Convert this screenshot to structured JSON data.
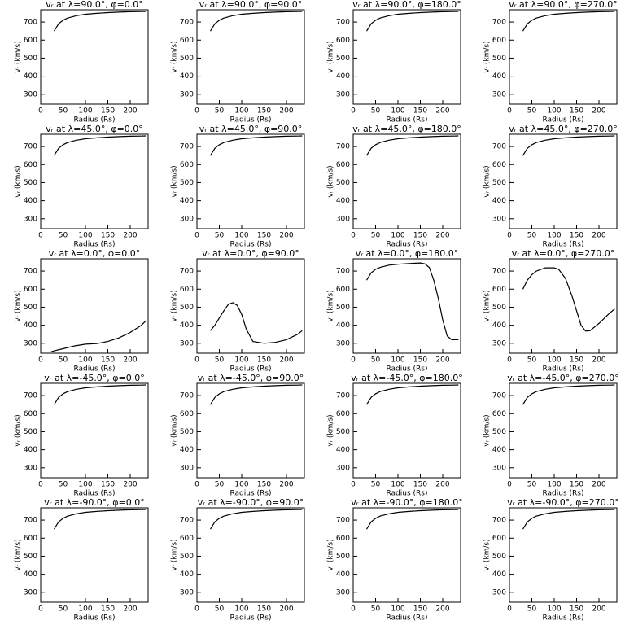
{
  "chart_data": [
    {
      "type": "line",
      "title": "vᵣ at λ=90.0°, φ=0.0°",
      "xlabel": "Radius (Rs)",
      "ylabel": "vᵣ (km/s)",
      "x": [
        30,
        40,
        50,
        60,
        80,
        100,
        125,
        150,
        175,
        200,
        225,
        235
      ],
      "values": [
        650,
        690,
        710,
        722,
        735,
        743,
        748,
        752,
        755,
        757,
        758,
        759
      ],
      "color": "#000000",
      "xlim": [
        0,
        240
      ],
      "xticks": [
        0,
        50,
        100,
        150,
        200
      ],
      "ylim": [
        245,
        768
      ],
      "yticks": [
        300,
        400,
        500,
        600,
        700
      ]
    },
    {
      "type": "line",
      "title": "vᵣ at λ=90.0°, φ=90.0°",
      "xlabel": "Radius (Rs)",
      "ylabel": "vᵣ (km/s)",
      "x": [
        30,
        40,
        50,
        60,
        80,
        100,
        125,
        150,
        175,
        200,
        225,
        235
      ],
      "values": [
        650,
        690,
        710,
        722,
        735,
        743,
        748,
        752,
        755,
        757,
        758,
        759
      ],
      "color": "#000000",
      "xlim": [
        0,
        240
      ],
      "xticks": [
        0,
        50,
        100,
        150,
        200
      ],
      "ylim": [
        245,
        768
      ],
      "yticks": [
        300,
        400,
        500,
        600,
        700
      ]
    },
    {
      "type": "line",
      "title": "vᵣ at λ=90.0°, φ=180.0°",
      "xlabel": "Radius (Rs)",
      "ylabel": "vᵣ (km/s)",
      "x": [
        30,
        40,
        50,
        60,
        80,
        100,
        125,
        150,
        175,
        200,
        225,
        235
      ],
      "values": [
        650,
        690,
        710,
        722,
        735,
        743,
        748,
        752,
        755,
        757,
        758,
        759
      ],
      "color": "#000000",
      "xlim": [
        0,
        240
      ],
      "xticks": [
        0,
        50,
        100,
        150,
        200
      ],
      "ylim": [
        245,
        768
      ],
      "yticks": [
        300,
        400,
        500,
        600,
        700
      ]
    },
    {
      "type": "line",
      "title": "vᵣ at λ=90.0°, φ=270.0°",
      "xlabel": "Radius (Rs)",
      "ylabel": "vᵣ (km/s)",
      "x": [
        30,
        40,
        50,
        60,
        80,
        100,
        125,
        150,
        175,
        200,
        225,
        235
      ],
      "values": [
        650,
        690,
        710,
        722,
        735,
        743,
        748,
        752,
        755,
        757,
        758,
        759
      ],
      "color": "#000000",
      "xlim": [
        0,
        240
      ],
      "xticks": [
        0,
        50,
        100,
        150,
        200
      ],
      "ylim": [
        245,
        768
      ],
      "yticks": [
        300,
        400,
        500,
        600,
        700
      ]
    },
    {
      "type": "line",
      "title": "vᵣ at λ=45.0°, φ=0.0°",
      "xlabel": "Radius (Rs)",
      "ylabel": "vᵣ (km/s)",
      "x": [
        30,
        40,
        50,
        60,
        80,
        100,
        125,
        150,
        175,
        200,
        225,
        235
      ],
      "values": [
        650,
        690,
        710,
        722,
        735,
        743,
        748,
        752,
        755,
        757,
        758,
        759
      ],
      "color": "#000000",
      "xlim": [
        0,
        240
      ],
      "xticks": [
        0,
        50,
        100,
        150,
        200
      ],
      "ylim": [
        245,
        768
      ],
      "yticks": [
        300,
        400,
        500,
        600,
        700
      ]
    },
    {
      "type": "line",
      "title": "vᵣ at λ=45.0°, φ=90.0°",
      "xlabel": "Radius (Rs)",
      "ylabel": "vᵣ (km/s)",
      "x": [
        30,
        40,
        50,
        60,
        80,
        100,
        125,
        150,
        175,
        200,
        225,
        235
      ],
      "values": [
        650,
        690,
        710,
        722,
        735,
        743,
        748,
        752,
        755,
        757,
        758,
        759
      ],
      "color": "#000000",
      "xlim": [
        0,
        240
      ],
      "xticks": [
        0,
        50,
        100,
        150,
        200
      ],
      "ylim": [
        245,
        768
      ],
      "yticks": [
        300,
        400,
        500,
        600,
        700
      ]
    },
    {
      "type": "line",
      "title": "vᵣ at λ=45.0°, φ=180.0°",
      "xlabel": "Radius (Rs)",
      "ylabel": "vᵣ (km/s)",
      "x": [
        30,
        40,
        50,
        60,
        80,
        100,
        125,
        150,
        175,
        200,
        225,
        235
      ],
      "values": [
        650,
        690,
        710,
        722,
        735,
        743,
        748,
        752,
        755,
        757,
        758,
        759
      ],
      "color": "#000000",
      "xlim": [
        0,
        240
      ],
      "xticks": [
        0,
        50,
        100,
        150,
        200
      ],
      "ylim": [
        245,
        768
      ],
      "yticks": [
        300,
        400,
        500,
        600,
        700
      ]
    },
    {
      "type": "line",
      "title": "vᵣ at λ=45.0°, φ=270.0°",
      "xlabel": "Radius (Rs)",
      "ylabel": "vᵣ (km/s)",
      "x": [
        30,
        40,
        50,
        60,
        80,
        100,
        125,
        150,
        175,
        200,
        225,
        235
      ],
      "values": [
        650,
        690,
        710,
        722,
        735,
        743,
        748,
        752,
        755,
        757,
        758,
        759
      ],
      "color": "#000000",
      "xlim": [
        0,
        240
      ],
      "xticks": [
        0,
        50,
        100,
        150,
        200
      ],
      "ylim": [
        245,
        768
      ],
      "yticks": [
        300,
        400,
        500,
        600,
        700
      ]
    },
    {
      "type": "line",
      "title": "vᵣ at λ=0.0°, φ=0.0°",
      "xlabel": "Radius (Rs)",
      "ylabel": "vᵣ (km/s)",
      "x": [
        20,
        30,
        50,
        75,
        100,
        125,
        150,
        175,
        200,
        225,
        235
      ],
      "values": [
        250,
        258,
        270,
        285,
        295,
        298,
        310,
        330,
        360,
        400,
        425
      ],
      "color": "#000000",
      "xlim": [
        0,
        240
      ],
      "xticks": [
        0,
        50,
        100,
        150,
        200
      ],
      "ylim": [
        245,
        768
      ],
      "yticks": [
        300,
        400,
        500,
        600,
        700
      ]
    },
    {
      "type": "line",
      "title": "vᵣ at λ=0.0°, φ=90.0°",
      "xlabel": "Radius (Rs)",
      "ylabel": "vᵣ (km/s)",
      "x": [
        30,
        40,
        50,
        60,
        70,
        80,
        90,
        100,
        110,
        125,
        150,
        175,
        200,
        225,
        235
      ],
      "values": [
        370,
        400,
        440,
        480,
        515,
        525,
        510,
        460,
        380,
        310,
        300,
        305,
        320,
        350,
        370
      ],
      "color": "#000000",
      "xlim": [
        0,
        240
      ],
      "xticks": [
        0,
        50,
        100,
        150,
        200
      ],
      "ylim": [
        245,
        768
      ],
      "yticks": [
        300,
        400,
        500,
        600,
        700
      ]
    },
    {
      "type": "line",
      "title": "vᵣ at λ=0.0°, φ=180.0°",
      "xlabel": "Radius (Rs)",
      "ylabel": "vᵣ (km/s)",
      "x": [
        30,
        40,
        50,
        60,
        80,
        100,
        125,
        150,
        160,
        170,
        180,
        190,
        200,
        210,
        220,
        235
      ],
      "values": [
        650,
        690,
        710,
        720,
        733,
        738,
        742,
        745,
        740,
        720,
        650,
        550,
        430,
        340,
        320,
        320
      ],
      "color": "#000000",
      "xlim": [
        0,
        240
      ],
      "xticks": [
        0,
        50,
        100,
        150,
        200
      ],
      "ylim": [
        245,
        768
      ],
      "yticks": [
        300,
        400,
        500,
        600,
        700
      ]
    },
    {
      "type": "line",
      "title": "vᵣ at λ=0.0°, φ=270.0°",
      "xlabel": "Radius (Rs)",
      "ylabel": "vᵣ (km/s)",
      "x": [
        30,
        40,
        50,
        60,
        80,
        100,
        110,
        125,
        140,
        150,
        160,
        170,
        180,
        200,
        225,
        235
      ],
      "values": [
        600,
        650,
        680,
        700,
        718,
        718,
        710,
        660,
        560,
        480,
        400,
        368,
        370,
        410,
        470,
        490
      ],
      "color": "#000000",
      "xlim": [
        0,
        240
      ],
      "xticks": [
        0,
        50,
        100,
        150,
        200
      ],
      "ylim": [
        245,
        768
      ],
      "yticks": [
        300,
        400,
        500,
        600,
        700
      ]
    },
    {
      "type": "line",
      "title": "vᵣ at λ=-45.0°, φ=0.0°",
      "xlabel": "Radius (Rs)",
      "ylabel": "vᵣ (km/s)",
      "x": [
        30,
        40,
        50,
        60,
        80,
        100,
        125,
        150,
        175,
        200,
        225,
        235
      ],
      "values": [
        650,
        690,
        710,
        722,
        735,
        743,
        748,
        752,
        755,
        757,
        758,
        759
      ],
      "color": "#000000",
      "xlim": [
        0,
        240
      ],
      "xticks": [
        0,
        50,
        100,
        150,
        200
      ],
      "ylim": [
        245,
        768
      ],
      "yticks": [
        300,
        400,
        500,
        600,
        700
      ]
    },
    {
      "type": "line",
      "title": "vᵣ at λ=-45.0°, φ=90.0°",
      "xlabel": "Radius (Rs)",
      "ylabel": "vᵣ (km/s)",
      "x": [
        30,
        40,
        50,
        60,
        80,
        100,
        125,
        150,
        175,
        200,
        225,
        235
      ],
      "values": [
        650,
        690,
        710,
        722,
        735,
        743,
        748,
        752,
        755,
        757,
        758,
        759
      ],
      "color": "#000000",
      "xlim": [
        0,
        240
      ],
      "xticks": [
        0,
        50,
        100,
        150,
        200
      ],
      "ylim": [
        245,
        768
      ],
      "yticks": [
        300,
        400,
        500,
        600,
        700
      ]
    },
    {
      "type": "line",
      "title": "vᵣ at λ=-45.0°, φ=180.0°",
      "xlabel": "Radius (Rs)",
      "ylabel": "vᵣ (km/s)",
      "x": [
        30,
        40,
        50,
        60,
        80,
        100,
        125,
        150,
        175,
        200,
        225,
        235
      ],
      "values": [
        650,
        690,
        710,
        722,
        735,
        743,
        748,
        752,
        755,
        757,
        758,
        759
      ],
      "color": "#000000",
      "xlim": [
        0,
        240
      ],
      "xticks": [
        0,
        50,
        100,
        150,
        200
      ],
      "ylim": [
        245,
        768
      ],
      "yticks": [
        300,
        400,
        500,
        600,
        700
      ]
    },
    {
      "type": "line",
      "title": "vᵣ at λ=-45.0°, φ=270.0°",
      "xlabel": "Radius (Rs)",
      "ylabel": "vᵣ (km/s)",
      "x": [
        30,
        40,
        50,
        60,
        80,
        100,
        125,
        150,
        175,
        200,
        225,
        235
      ],
      "values": [
        650,
        690,
        710,
        722,
        735,
        743,
        748,
        752,
        755,
        757,
        758,
        759
      ],
      "color": "#000000",
      "xlim": [
        0,
        240
      ],
      "xticks": [
        0,
        50,
        100,
        150,
        200
      ],
      "ylim": [
        245,
        768
      ],
      "yticks": [
        300,
        400,
        500,
        600,
        700
      ]
    },
    {
      "type": "line",
      "title": "vᵣ at λ=-90.0°, φ=0.0°",
      "xlabel": "Radius (Rs)",
      "ylabel": "vᵣ (km/s)",
      "x": [
        30,
        40,
        50,
        60,
        80,
        100,
        125,
        150,
        175,
        200,
        225,
        235
      ],
      "values": [
        650,
        690,
        710,
        722,
        735,
        743,
        748,
        752,
        755,
        757,
        758,
        759
      ],
      "color": "#000000",
      "xlim": [
        0,
        240
      ],
      "xticks": [
        0,
        50,
        100,
        150,
        200
      ],
      "ylim": [
        245,
        768
      ],
      "yticks": [
        300,
        400,
        500,
        600,
        700
      ]
    },
    {
      "type": "line",
      "title": "vᵣ at λ=-90.0°, φ=90.0°",
      "xlabel": "Radius (Rs)",
      "ylabel": "vᵣ (km/s)",
      "x": [
        30,
        40,
        50,
        60,
        80,
        100,
        125,
        150,
        175,
        200,
        225,
        235
      ],
      "values": [
        650,
        690,
        710,
        722,
        735,
        743,
        748,
        752,
        755,
        757,
        758,
        759
      ],
      "color": "#000000",
      "xlim": [
        0,
        240
      ],
      "xticks": [
        0,
        50,
        100,
        150,
        200
      ],
      "ylim": [
        245,
        768
      ],
      "yticks": [
        300,
        400,
        500,
        600,
        700
      ]
    },
    {
      "type": "line",
      "title": "vᵣ at λ=-90.0°, φ=180.0°",
      "xlabel": "Radius (Rs)",
      "ylabel": "vᵣ (km/s)",
      "x": [
        30,
        40,
        50,
        60,
        80,
        100,
        125,
        150,
        175,
        200,
        225,
        235
      ],
      "values": [
        650,
        690,
        710,
        722,
        735,
        743,
        748,
        752,
        755,
        757,
        758,
        759
      ],
      "color": "#000000",
      "xlim": [
        0,
        240
      ],
      "xticks": [
        0,
        50,
        100,
        150,
        200
      ],
      "ylim": [
        245,
        768
      ],
      "yticks": [
        300,
        400,
        500,
        600,
        700
      ]
    },
    {
      "type": "line",
      "title": "vᵣ at λ=-90.0°, φ=270.0°",
      "xlabel": "Radius (Rs)",
      "ylabel": "vᵣ (km/s)",
      "x": [
        30,
        40,
        50,
        60,
        80,
        100,
        125,
        150,
        175,
        200,
        225,
        235
      ],
      "values": [
        650,
        690,
        710,
        722,
        735,
        743,
        748,
        752,
        755,
        757,
        758,
        759
      ],
      "color": "#000000",
      "xlim": [
        0,
        240
      ],
      "xticks": [
        0,
        50,
        100,
        150,
        200
      ],
      "ylim": [
        245,
        768
      ],
      "yticks": [
        300,
        400,
        500,
        600,
        700
      ]
    }
  ]
}
